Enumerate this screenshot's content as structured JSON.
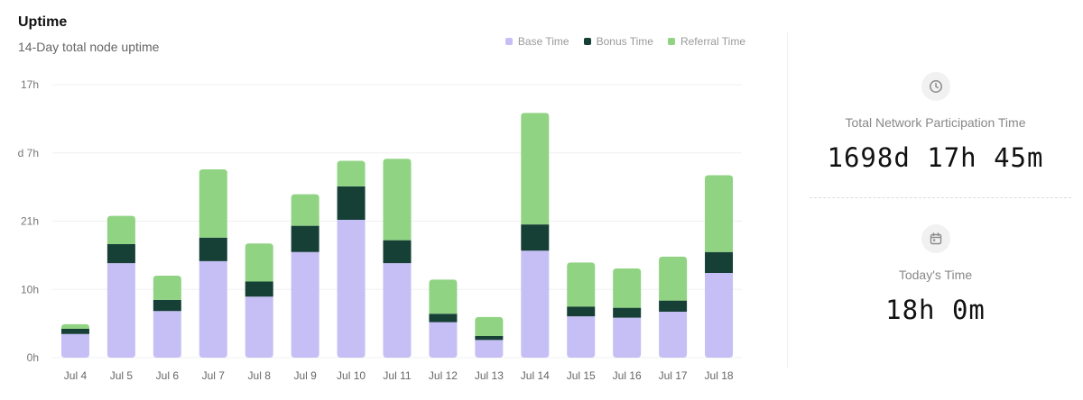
{
  "header": {
    "title": "Uptime",
    "subtitle": "14-Day total node uptime"
  },
  "legend": [
    {
      "label": "Base Time",
      "color": "#c5bff5"
    },
    {
      "label": "Bonus Time",
      "color": "#163f36"
    },
    {
      "label": "Referral Time",
      "color": "#8fd383"
    }
  ],
  "stats": {
    "total": {
      "label": "Total Network Participation Time",
      "value": "1698d 17h 45m",
      "icon": "clock-icon"
    },
    "today": {
      "label": "Today's Time",
      "value": "18h 0m",
      "icon": "calendar-icon"
    }
  },
  "chart_data": {
    "type": "bar",
    "stacked": true,
    "categories": [
      "Jul 4",
      "Jul 5",
      "Jul 6",
      "Jul 7",
      "Jul 8",
      "Jul 9",
      "Jul 10",
      "Jul 11",
      "Jul 12",
      "Jul 13",
      "Jul 14",
      "Jul 15",
      "Jul 16",
      "Jul 17",
      "Jul 18"
    ],
    "y_ticks": [
      "0h",
      "10h",
      "21h",
      "d 7h",
      "17h"
    ],
    "y_tick_values": [
      0,
      10.4,
      20.8,
      31.2,
      41.6
    ],
    "ylim": [
      0,
      41.6
    ],
    "grid": true,
    "legend_position": "top-right",
    "series": [
      {
        "name": "Base Time",
        "color": "#c5bff5",
        "values": [
          3.6,
          14.4,
          7.1,
          14.7,
          9.3,
          16.1,
          21.0,
          14.4,
          5.4,
          2.7,
          16.3,
          6.3,
          6.1,
          7.0,
          12.9
        ]
      },
      {
        "name": "Bonus Time",
        "color": "#163f36",
        "values": [
          0.8,
          2.9,
          1.7,
          3.6,
          2.3,
          4.0,
          5.1,
          3.5,
          1.3,
          0.6,
          4.0,
          1.5,
          1.5,
          1.7,
          3.2
        ]
      },
      {
        "name": "Referral Time",
        "color": "#8fd383",
        "values": [
          0.7,
          4.3,
          3.7,
          10.4,
          5.8,
          4.8,
          3.9,
          12.4,
          5.2,
          2.9,
          17.0,
          6.7,
          6.0,
          6.7,
          11.7
        ]
      }
    ]
  }
}
